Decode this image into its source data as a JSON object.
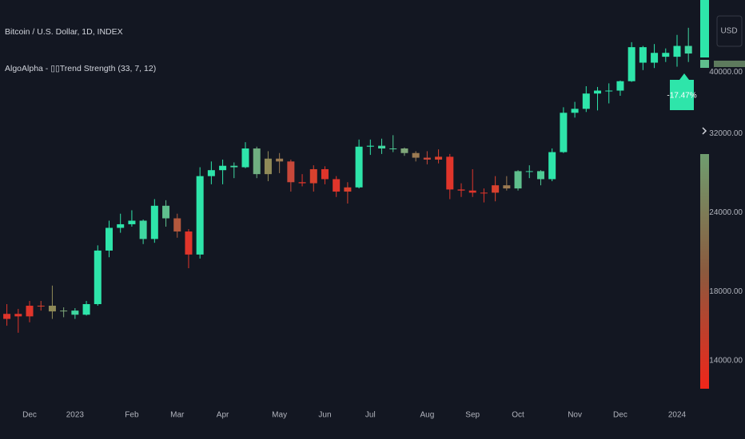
{
  "header": {
    "symbol": "Bitcoin / U.S. Dollar, 1D, INDEX",
    "indicator": "AlgoAlpha - ▯▯Trend Strength (33, 7, 12)"
  },
  "currency": "USD",
  "trend_label": "-17.47%",
  "chart_data": {
    "type": "candlestick",
    "categories": [
      null,
      null,
      "Dec",
      null,
      null,
      null,
      "2023",
      null,
      null,
      null,
      null,
      "Feb",
      null,
      null,
      null,
      "Mar",
      null,
      null,
      null,
      "Apr",
      null,
      null,
      null,
      null,
      "May",
      null,
      null,
      null,
      "Jun",
      null,
      null,
      null,
      "Jul",
      null,
      null,
      null,
      null,
      "Aug",
      null,
      null,
      null,
      "Sep",
      null,
      null,
      null,
      "Oct",
      null,
      null,
      null,
      null,
      "Nov",
      null,
      null,
      null,
      "Dec",
      null,
      null,
      null,
      null,
      "2024",
      null
    ],
    "open": [
      16300,
      16600,
      16450,
      17100,
      17100,
      16750,
      16800,
      16550,
      17200,
      20900,
      22700,
      23000,
      23300,
      21800,
      24600,
      23500,
      22400,
      20600,
      27400,
      28000,
      28450,
      28300,
      30300,
      27600,
      29200,
      28900,
      26800,
      26700,
      28100,
      27100,
      25900,
      26300,
      30500,
      30600,
      30300,
      30300,
      29800,
      29300,
      29100,
      29400,
      26100,
      26000,
      25800,
      25800,
      26500,
      26200,
      27900,
      27900,
      27100,
      29900,
      34500,
      35000,
      37000,
      37400,
      37400,
      38700,
      43800,
      41400,
      42900,
      42300,
      44000
    ],
    "high": [
      17200,
      16900,
      17400,
      17400,
      18400,
      17000,
      16950,
      17400,
      21300,
      23300,
      23900,
      24200,
      23400,
      25200,
      25100,
      23900,
      22600,
      28300,
      28900,
      29100,
      28800,
      31000,
      30500,
      30000,
      29800,
      29100,
      27600,
      28500,
      28400,
      27400,
      26800,
      31300,
      31300,
      31400,
      31800,
      30400,
      30000,
      30000,
      30200,
      29700,
      26700,
      28100,
      26200,
      27400,
      27400,
      28000,
      28500,
      28000,
      30300,
      35200,
      35900,
      38000,
      37900,
      38400,
      38800,
      44600,
      44000,
      44300,
      43600,
      45800,
      47000
    ],
    "low": [
      15900,
      15500,
      16100,
      16800,
      16300,
      16400,
      16300,
      16500,
      17100,
      20400,
      22300,
      22800,
      21400,
      21500,
      22800,
      21900,
      19600,
      20300,
      26600,
      26600,
      27200,
      28200,
      27200,
      26900,
      27700,
      25900,
      26400,
      25900,
      26600,
      25400,
      24800,
      26200,
      29600,
      29700,
      29900,
      29500,
      28900,
      28600,
      28700,
      25200,
      25400,
      25400,
      24900,
      25000,
      26000,
      26000,
      27200,
      26500,
      26900,
      29800,
      33900,
      34600,
      34800,
      35700,
      36700,
      38600,
      40300,
      40600,
      41500,
      40800,
      41500
    ],
    "close": [
      16600,
      16450,
      17100,
      17100,
      16750,
      16800,
      16550,
      17200,
      20900,
      22700,
      23000,
      23300,
      21800,
      24600,
      23500,
      22400,
      20600,
      27400,
      28000,
      28450,
      28300,
      30300,
      27600,
      29200,
      28900,
      26800,
      26700,
      28100,
      27100,
      25900,
      26300,
      30500,
      30600,
      30300,
      30300,
      29800,
      29300,
      29100,
      29400,
      26100,
      26000,
      25800,
      25800,
      26500,
      26200,
      27900,
      27900,
      27100,
      29900,
      34500,
      35000,
      37000,
      37400,
      37400,
      38700,
      43800,
      41400,
      42900,
      42300,
      44000,
      42800
    ],
    "colors": [
      "#e0352b",
      "#e0352b",
      "#e0352b",
      "#d9412e",
      "#8f8a58",
      "#7fa77a",
      "#3fd6a0",
      "#2ee5aa",
      "#2ee5aa",
      "#2ee5aa",
      "#2ee5aa",
      "#2ee5aa",
      "#3fd6a0",
      "#2ee5aa",
      "#5fbf8d",
      "#b3583d",
      "#e0352b",
      "#2ee5aa",
      "#2ee5aa",
      "#2ee5aa",
      "#3fd6a0",
      "#2ee5aa",
      "#6fae80",
      "#8f8a58",
      "#9b7a52",
      "#c8483a",
      "#e0352b",
      "#d9412e",
      "#e0352b",
      "#e0352b",
      "#d9412e",
      "#2ee5aa",
      "#2ee5aa",
      "#3fd6a0",
      "#4fcb95",
      "#7fa77a",
      "#9b7a52",
      "#c8483a",
      "#d9412e",
      "#e0352b",
      "#e0352b",
      "#e0352b",
      "#e0352b",
      "#d9412e",
      "#9b7a52",
      "#5fbf8d",
      "#3fd6a0",
      "#4fcb95",
      "#2ee5aa",
      "#2ee5aa",
      "#2ee5aa",
      "#2ee5aa",
      "#2ee5aa",
      "#2ee5aa",
      "#2ee5aa",
      "#2ee5aa",
      "#2ee5aa",
      "#2ee5aa",
      "#2ee5aa",
      "#2ee5aa",
      "#3fd6a0"
    ],
    "log_scale": true,
    "ylim": [
      12000,
      52000
    ],
    "yticks": [
      {
        "value": 14000,
        "label": "14000.00"
      },
      {
        "value": 18000,
        "label": "18000.00"
      },
      {
        "value": 24000,
        "label": "24000.00"
      },
      {
        "value": 32000,
        "label": "32000.00"
      },
      {
        "value": 40000,
        "label": "40000.00"
      }
    ],
    "grid": false
  }
}
